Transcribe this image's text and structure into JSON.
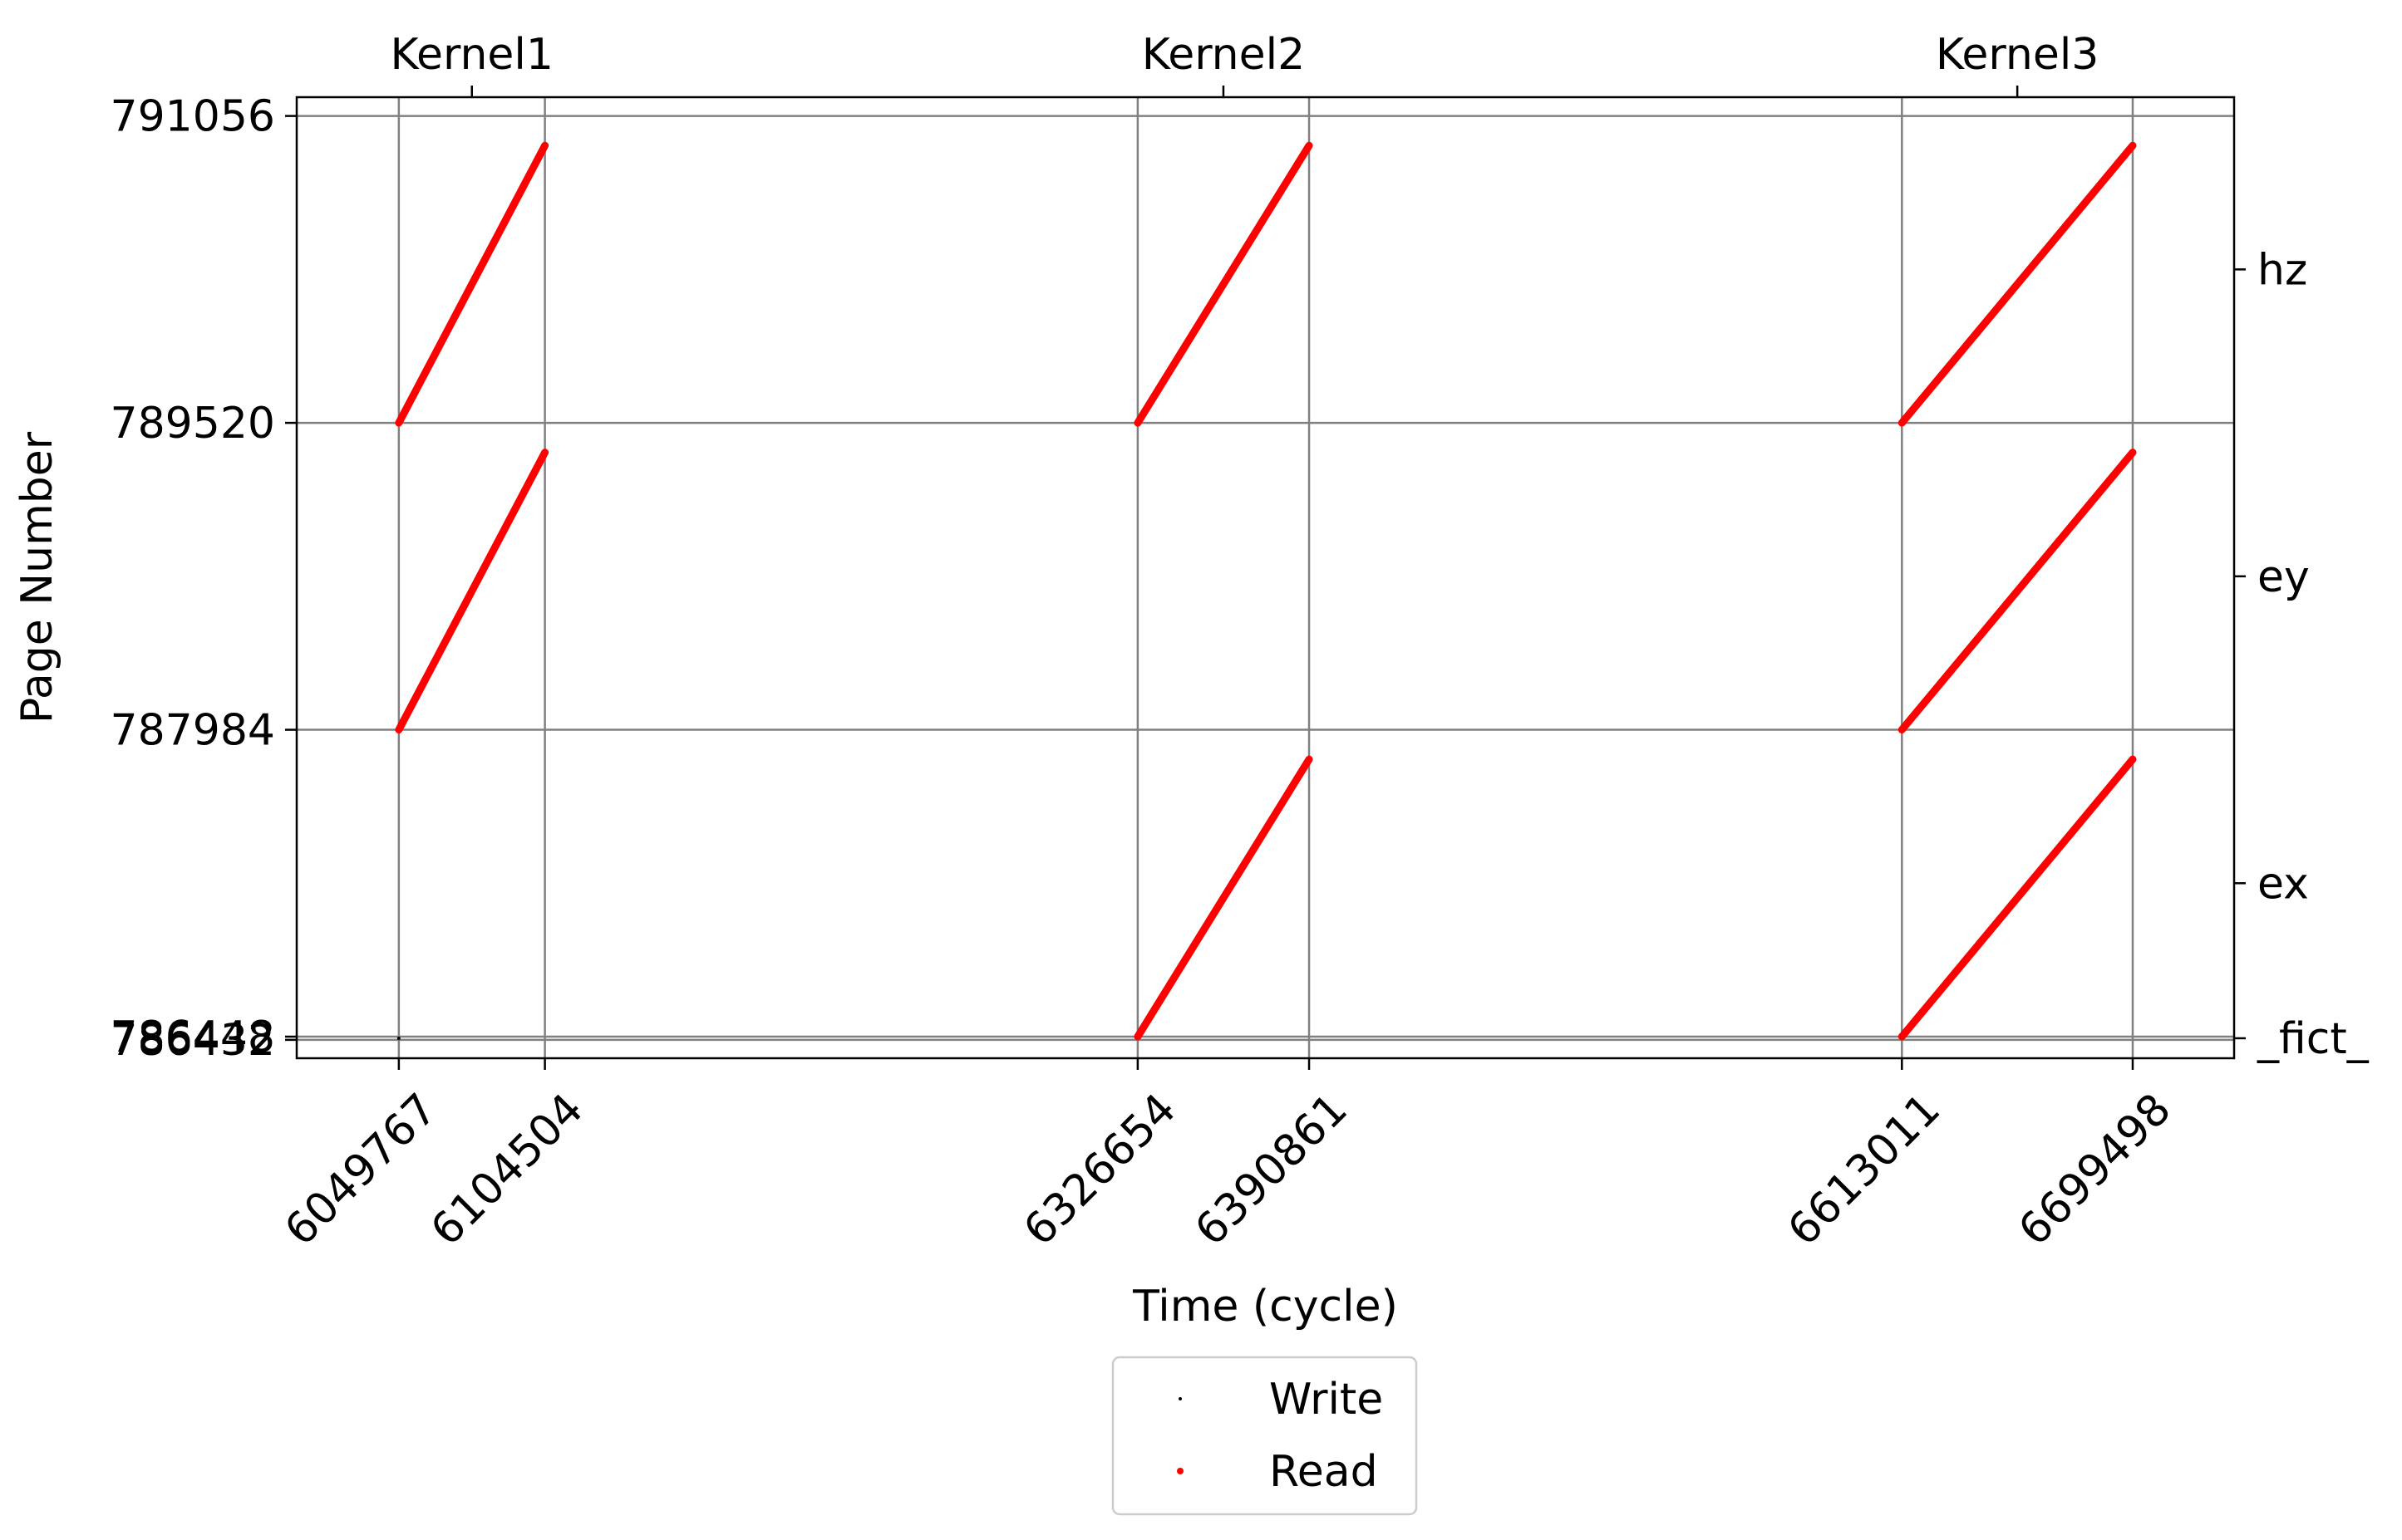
{
  "chart_data": {
    "type": "scatter",
    "xlabel": "Time (cycle)",
    "ylabel": "Page Number",
    "x_ticks": [
      6049767,
      6104504,
      6326654,
      6390861,
      6613011,
      6699498
    ],
    "x_tick_labels": [
      "6049767",
      "6104504",
      "6326654",
      "6390861",
      "6613011",
      "6699498"
    ],
    "y_ticks": [
      786432,
      786448,
      787984,
      789520,
      791056
    ],
    "y_tick_labels": [
      "786432",
      "786448",
      "787984",
      "789520",
      "791056"
    ],
    "top_axis": {
      "labels": [
        "Kernel1",
        "Kernel2",
        "Kernel3"
      ],
      "positions": [
        6077136,
        6358758,
        6656255
      ]
    },
    "right_axis": {
      "labels": [
        "_fict_",
        "ex",
        "ey",
        "hz"
      ],
      "positions": [
        786440,
        787216,
        788752,
        790288
      ]
    },
    "xlim": [
      6011500,
      6737500
    ],
    "ylim": [
      786340,
      791150
    ],
    "grid": true,
    "legend": {
      "placement": "below-center",
      "entries": [
        {
          "label": "Write",
          "color": "#000000"
        },
        {
          "label": "Read",
          "color": "#ff0000"
        }
      ]
    },
    "series": [
      {
        "name": "Read",
        "color": "#ff0000",
        "segments": [
          {
            "x": [
              6049767,
              6104504
            ],
            "y": [
              789520,
              790908
            ]
          },
          {
            "x": [
              6049767,
              6104504
            ],
            "y": [
              787984,
              789372
            ]
          },
          {
            "x": [
              6326654,
              6390861
            ],
            "y": [
              789520,
              790908
            ]
          },
          {
            "x": [
              6326654,
              6390861
            ],
            "y": [
              786448,
              787836
            ]
          },
          {
            "x": [
              6613011,
              6699498
            ],
            "y": [
              789520,
              790908
            ]
          },
          {
            "x": [
              6613011,
              6699498
            ],
            "y": [
              787984,
              789372
            ]
          },
          {
            "x": [
              6613011,
              6699498
            ],
            "y": [
              786448,
              787836
            ]
          }
        ]
      },
      {
        "name": "Write",
        "color": "#000000",
        "points": [
          {
            "x": 6049767,
            "y": 786440
          }
        ]
      }
    ]
  }
}
